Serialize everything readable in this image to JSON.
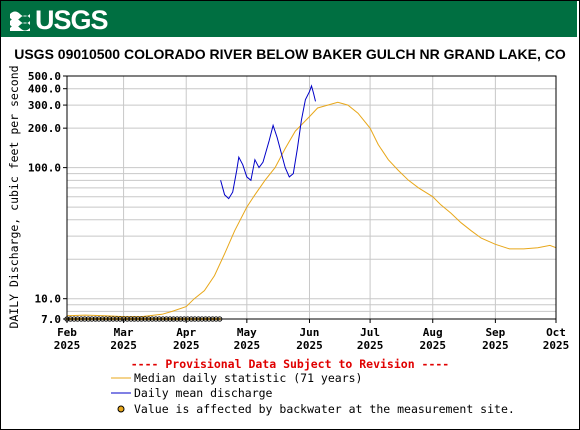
{
  "header": {
    "logo_text": "USGS",
    "logo_icon": "usgs-wave-icon",
    "banner_color": "#006f41"
  },
  "chart_data": {
    "type": "line",
    "title": "USGS 09010500 COLORADO RIVER BELOW BAKER GULCH NR GRAND LAKE, CO",
    "ylabel": "DAILY Discharge, cubic feet per second",
    "xlabel": "",
    "yscale": "log",
    "ylim": [
      7.0,
      500.0
    ],
    "y_ticks": [
      {
        "value": 7,
        "label": "7.0"
      },
      {
        "value": 10,
        "label": "10.0"
      },
      {
        "value": 100,
        "label": "100.0"
      },
      {
        "value": 200,
        "label": "200.0"
      },
      {
        "value": 300,
        "label": "300.0"
      },
      {
        "value": 400,
        "label": "400.0"
      },
      {
        "value": 500,
        "label": "500.0"
      }
    ],
    "x_ticks": [
      {
        "date": "2025-02-01",
        "label": "Feb",
        "year": "2025"
      },
      {
        "date": "2025-03-01",
        "label": "Mar",
        "year": "2025"
      },
      {
        "date": "2025-04-01",
        "label": "Apr",
        "year": "2025"
      },
      {
        "date": "2025-05-01",
        "label": "May",
        "year": "2025"
      },
      {
        "date": "2025-06-01",
        "label": "Jun",
        "year": "2025"
      },
      {
        "date": "2025-07-01",
        "label": "Jul",
        "year": "2025"
      },
      {
        "date": "2025-08-01",
        "label": "Aug",
        "year": "2025"
      },
      {
        "date": "2025-09-01",
        "label": "Sep",
        "year": "2025"
      },
      {
        "date": "2025-10-01",
        "label": "Oct",
        "year": "2025"
      }
    ],
    "grid": true,
    "series": [
      {
        "name": "Median daily statistic (71 years)",
        "color": "#e8a71a",
        "points": [
          [
            "2025-02-01",
            7.4
          ],
          [
            "2025-02-10",
            7.5
          ],
          [
            "2025-02-20",
            7.4
          ],
          [
            "2025-03-01",
            7.3
          ],
          [
            "2025-03-10",
            7.3
          ],
          [
            "2025-03-20",
            7.6
          ],
          [
            "2025-03-25",
            8.0
          ],
          [
            "2025-04-01",
            8.7
          ],
          [
            "2025-04-05",
            10.0
          ],
          [
            "2025-04-10",
            11.5
          ],
          [
            "2025-04-15",
            15.0
          ],
          [
            "2025-04-20",
            22.0
          ],
          [
            "2025-04-25",
            33.0
          ],
          [
            "2025-05-01",
            50.0
          ],
          [
            "2025-05-05",
            62.0
          ],
          [
            "2025-05-10",
            80.0
          ],
          [
            "2025-05-15",
            100.0
          ],
          [
            "2025-05-20",
            140.0
          ],
          [
            "2025-05-25",
            190.0
          ],
          [
            "2025-06-01",
            245.0
          ],
          [
            "2025-06-05",
            285.0
          ],
          [
            "2025-06-10",
            300.0
          ],
          [
            "2025-06-15",
            315.0
          ],
          [
            "2025-06-20",
            300.0
          ],
          [
            "2025-06-25",
            260.0
          ],
          [
            "2025-07-01",
            200.0
          ],
          [
            "2025-07-05",
            150.0
          ],
          [
            "2025-07-10",
            115.0
          ],
          [
            "2025-07-15",
            95.0
          ],
          [
            "2025-07-20",
            80.0
          ],
          [
            "2025-07-25",
            70.0
          ],
          [
            "2025-08-01",
            60.0
          ],
          [
            "2025-08-05",
            52.0
          ],
          [
            "2025-08-10",
            45.0
          ],
          [
            "2025-08-15",
            38.0
          ],
          [
            "2025-08-20",
            33.0
          ],
          [
            "2025-08-25",
            29.0
          ],
          [
            "2025-09-01",
            26.0
          ],
          [
            "2025-09-08",
            24.0
          ],
          [
            "2025-09-15",
            24.0
          ],
          [
            "2025-09-22",
            24.5
          ],
          [
            "2025-09-28",
            25.5
          ],
          [
            "2025-10-01",
            24.5
          ]
        ]
      },
      {
        "name": "Daily mean discharge",
        "color": "#0000c8",
        "points": [
          [
            "2025-04-18",
            80.0
          ],
          [
            "2025-04-20",
            62.0
          ],
          [
            "2025-04-22",
            58.0
          ],
          [
            "2025-04-24",
            65.0
          ],
          [
            "2025-04-26",
            95.0
          ],
          [
            "2025-04-27",
            120.0
          ],
          [
            "2025-04-29",
            105.0
          ],
          [
            "2025-05-01",
            85.0
          ],
          [
            "2025-05-03",
            80.0
          ],
          [
            "2025-05-05",
            115.0
          ],
          [
            "2025-05-07",
            100.0
          ],
          [
            "2025-05-09",
            110.0
          ],
          [
            "2025-05-12",
            160.0
          ],
          [
            "2025-05-14",
            210.0
          ],
          [
            "2025-05-16",
            170.0
          ],
          [
            "2025-05-18",
            130.0
          ],
          [
            "2025-05-20",
            100.0
          ],
          [
            "2025-05-22",
            85.0
          ],
          [
            "2025-05-24",
            90.0
          ],
          [
            "2025-05-26",
            140.0
          ],
          [
            "2025-05-28",
            230.0
          ],
          [
            "2025-05-30",
            330.0
          ],
          [
            "2025-06-01",
            380.0
          ],
          [
            "2025-06-02",
            420.0
          ],
          [
            "2025-06-03",
            370.0
          ],
          [
            "2025-06-04",
            320.0
          ]
        ]
      }
    ],
    "backwater_markers": {
      "name": "Value is affected by backwater at the measurement site.",
      "color": "#e8a71a",
      "value": 7.0,
      "start": "2025-02-01",
      "end": "2025-04-18"
    },
    "legend": {
      "provisional_note": "---- Provisional Data Subject to Revision ----",
      "provisional_color": "#e00000",
      "entries": [
        {
          "label": "Median daily statistic (71 years)",
          "kind": "line",
          "color": "#e8a71a"
        },
        {
          "label": "Daily mean discharge",
          "kind": "line",
          "color": "#0000c8"
        },
        {
          "label": "Value is affected by backwater at the measurement site.",
          "kind": "marker",
          "color": "#e8a71a"
        }
      ],
      "placement": "bottom"
    }
  }
}
